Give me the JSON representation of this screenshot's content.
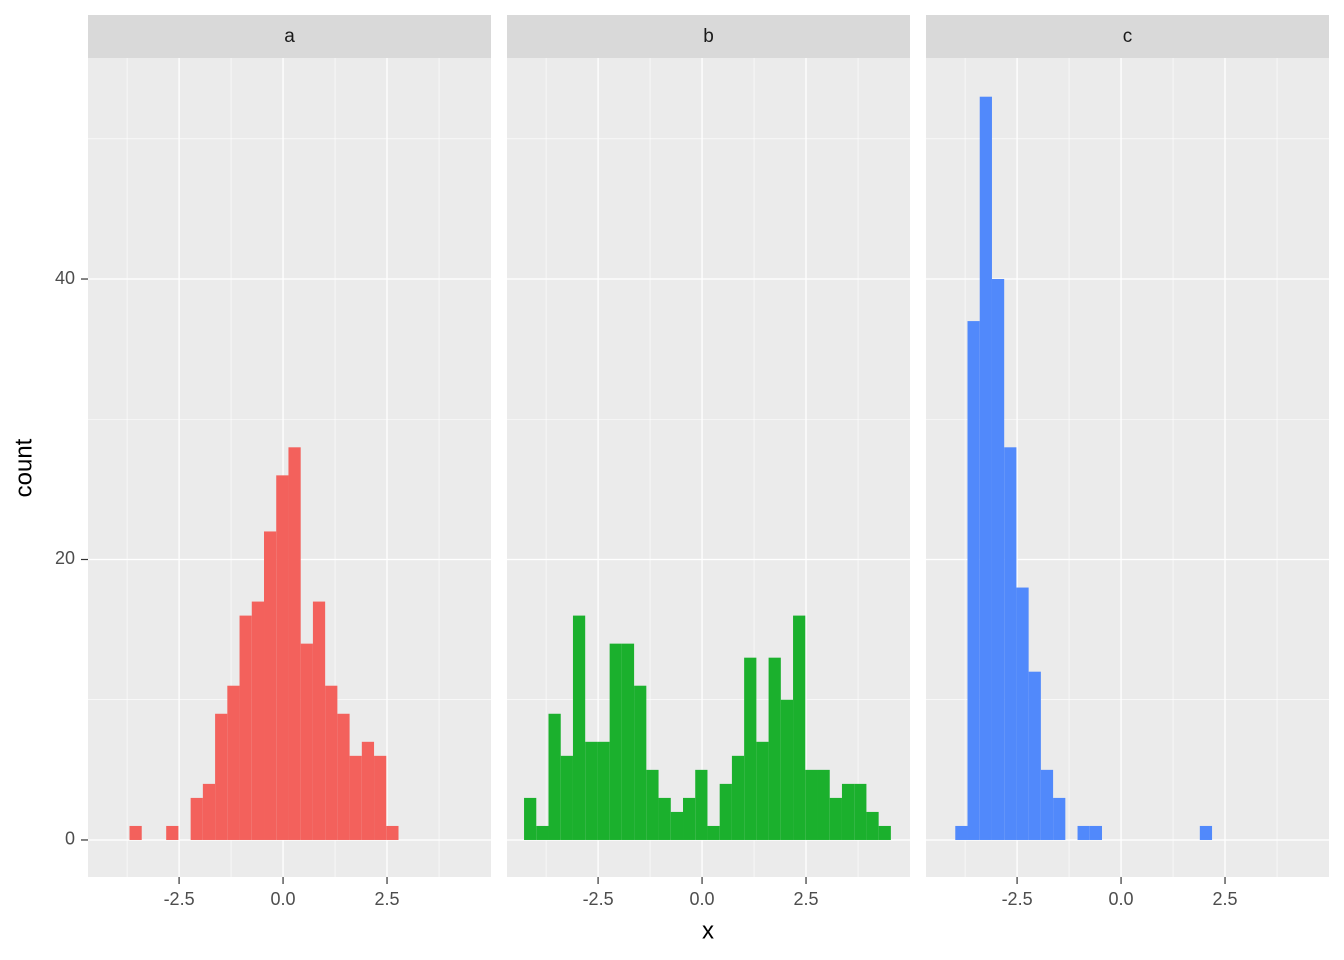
{
  "chart_data": {
    "type": "histogram",
    "x_label": "x",
    "y_label": "count",
    "bins": [
      -4.28,
      -3.986,
      -3.692,
      -3.398,
      -3.104,
      -2.81,
      -2.516,
      -2.222,
      -1.928,
      -1.634,
      -1.34,
      -1.046,
      -0.752,
      -0.458,
      -0.164,
      0.13,
      0.424,
      0.718,
      1.012,
      1.306,
      1.6,
      1.894,
      2.188,
      2.482,
      2.776,
      3.07,
      3.364,
      3.658,
      3.952,
      4.246,
      4.54
    ],
    "facets": [
      {
        "name": "a",
        "color": "#f3615c",
        "values": [
          0,
          0,
          1,
          0,
          0,
          1,
          0,
          3,
          4,
          9,
          11,
          16,
          17,
          22,
          26,
          28,
          14,
          17,
          11,
          9,
          6,
          7,
          6,
          1,
          0,
          0,
          0,
          0,
          0,
          0
        ]
      },
      {
        "name": "b",
        "color": "#1bb02d",
        "values": [
          3,
          1,
          9,
          6,
          16,
          7,
          7,
          14,
          14,
          11,
          5,
          3,
          2,
          3,
          5,
          1,
          4,
          6,
          13,
          7,
          13,
          10,
          16,
          5,
          5,
          3,
          4,
          4,
          2,
          1
        ]
      },
      {
        "name": "c",
        "color": "#5189fb",
        "values": [
          0,
          1,
          37,
          53,
          40,
          28,
          18,
          12,
          5,
          3,
          0,
          1,
          1,
          0,
          0,
          0,
          0,
          0,
          0,
          0,
          0,
          1,
          0,
          0,
          0,
          0,
          0,
          0,
          0,
          0
        ]
      }
    ],
    "xlim": [
      -4.69,
      5.0
    ],
    "ylim": [
      -2.64,
      55.76
    ],
    "xticks": [
      -2.5,
      {
        "value": 0,
        "label": "0.0"
      },
      2.5
    ],
    "yticks": [
      0,
      20,
      40
    ],
    "x_minor_breaks": [
      -3.75,
      -1.25,
      1.25,
      3.75
    ],
    "y_minor_breaks": [
      10,
      30,
      50
    ],
    "grid": true
  }
}
